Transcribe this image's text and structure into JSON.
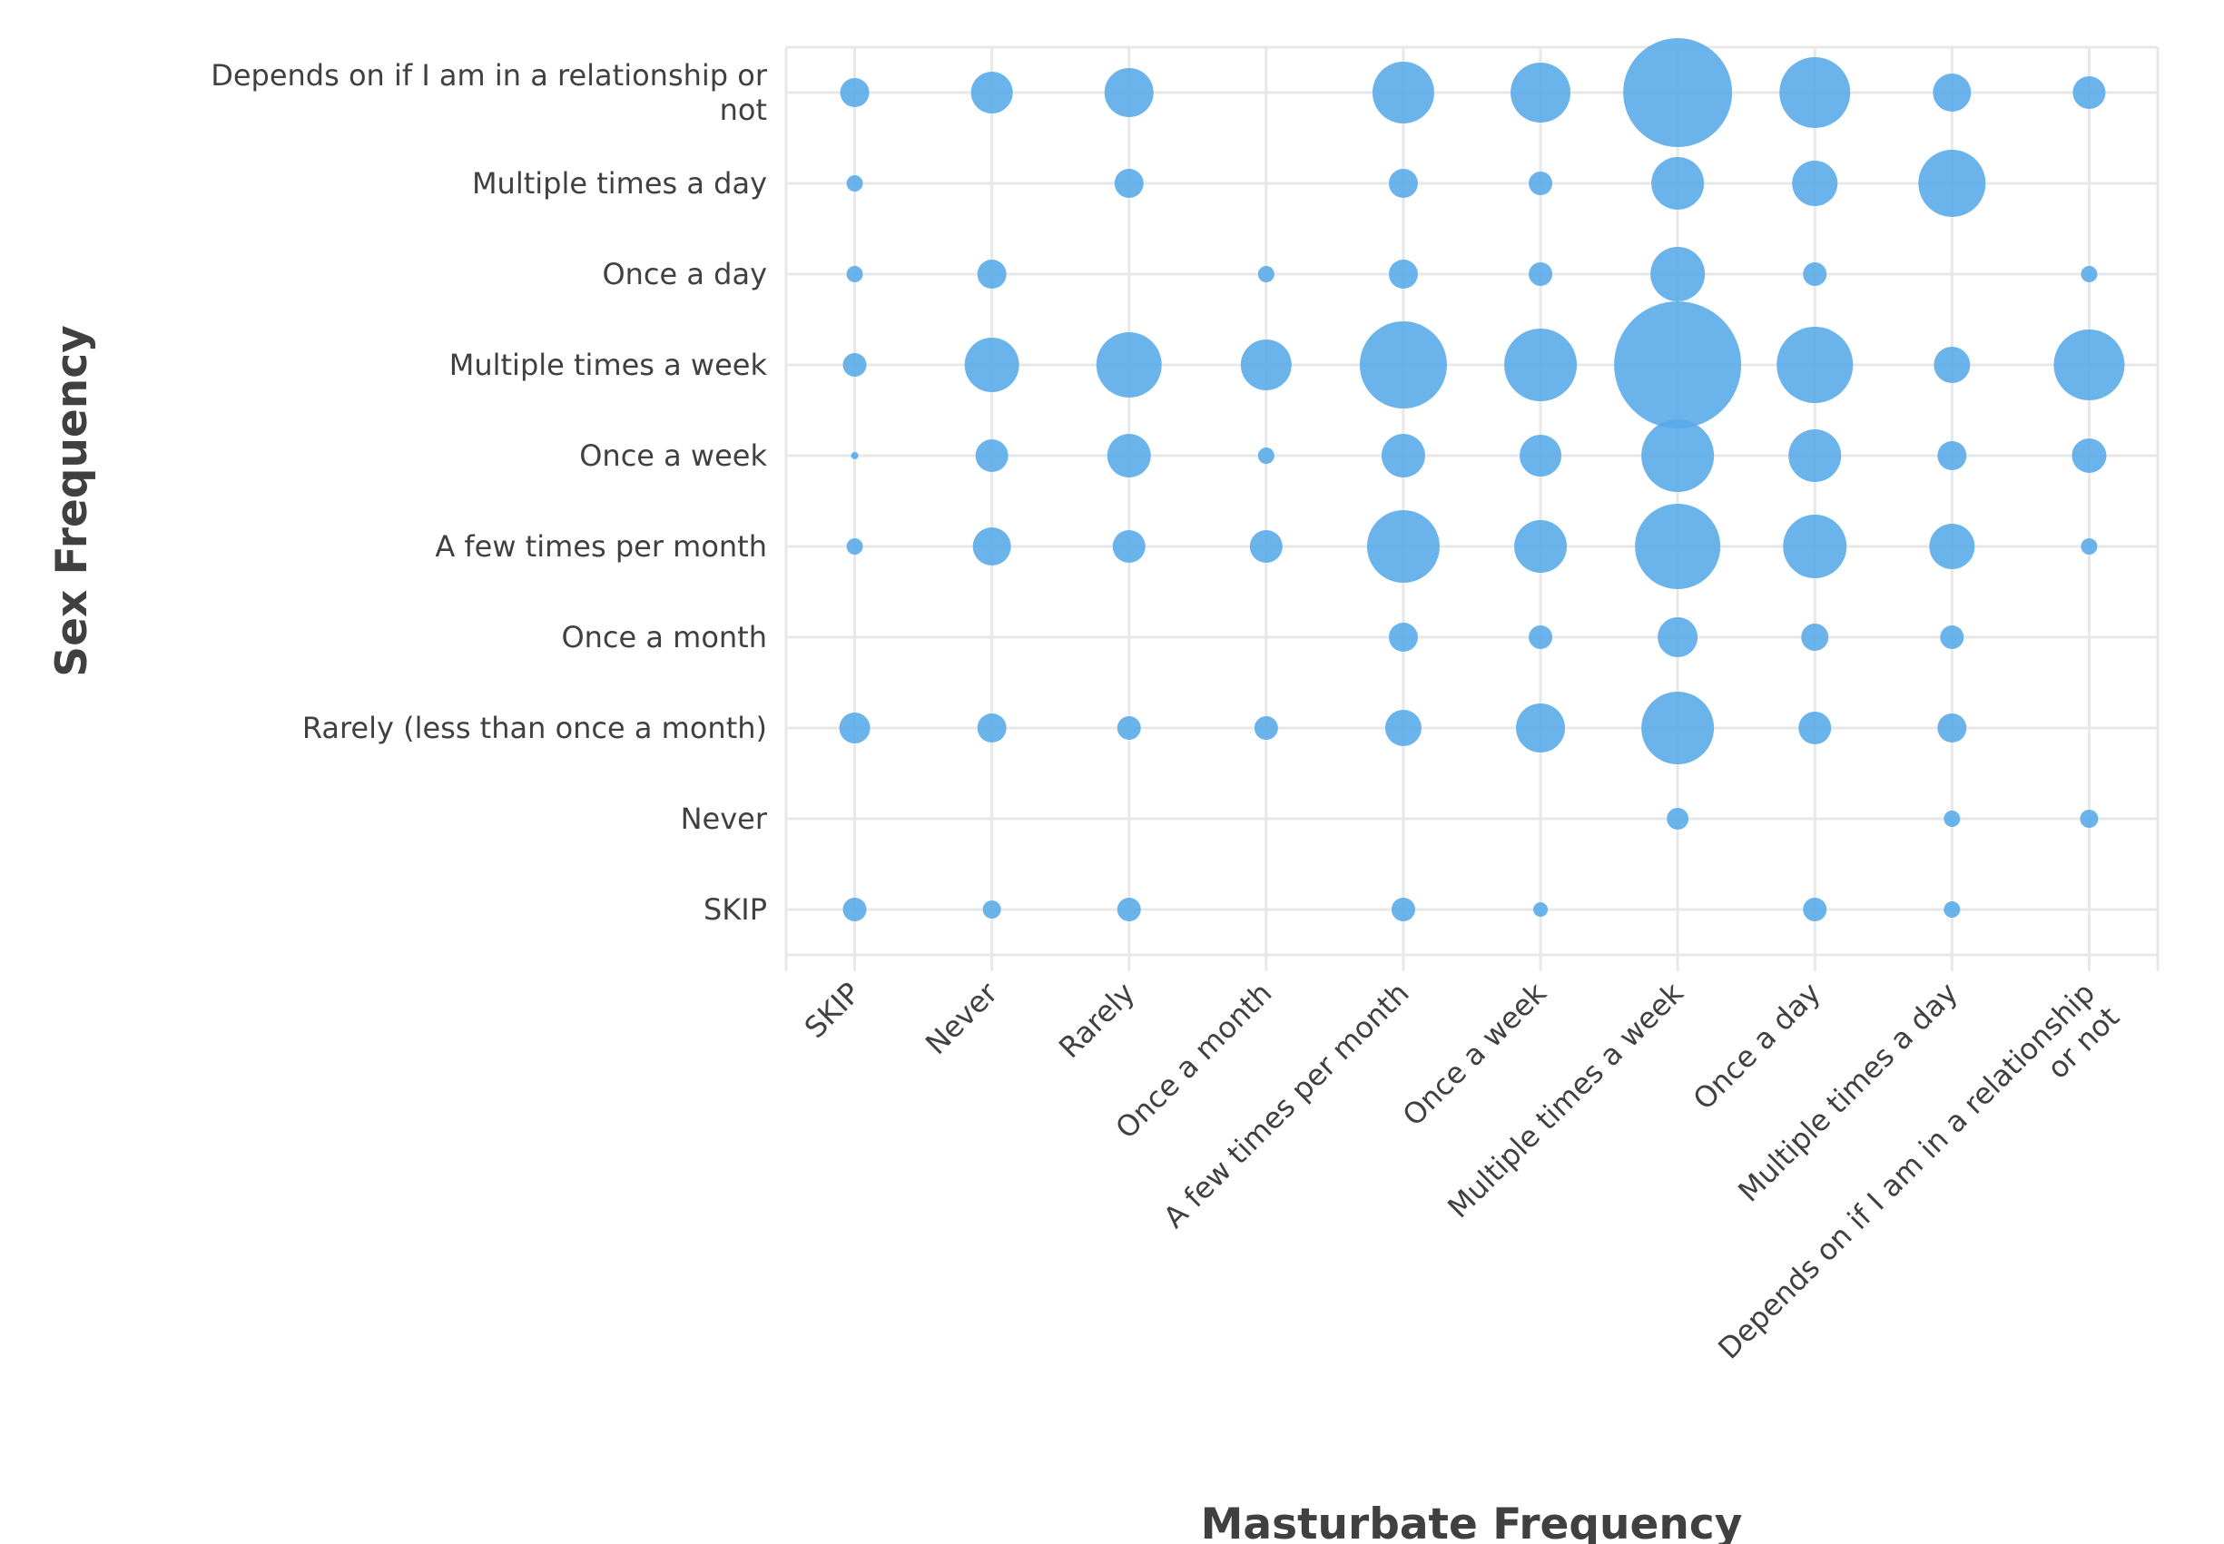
{
  "chart_data": {
    "type": "scatter",
    "variant": "bubble-grid",
    "title": "",
    "xlabel": "Masturbate Frequency",
    "ylabel": "Sex Frequency",
    "x_categories": [
      "SKIP",
      "Never",
      "Rarely",
      "Once a month",
      "A few times per month",
      "Once a week",
      "Multiple times a week",
      "Once a day",
      "Multiple times a day",
      "Depends on if I am in a relationship\nor not"
    ],
    "y_categories": [
      "Depends on if I am in a relationship or\nnot",
      "Multiple times a day",
      "Once a day",
      "Multiple times a week",
      "Once a week",
      "A few times per month",
      "Once a month",
      "Rarely (less than once a month)",
      "Never",
      "SKIP"
    ],
    "bubble_radius_px": [
      [
        16,
        23,
        27,
        0,
        34,
        33,
        60,
        39,
        21,
        18
      ],
      [
        9,
        0,
        16,
        0,
        16,
        13,
        29,
        25,
        37,
        0
      ],
      [
        9,
        16,
        0,
        9,
        16,
        13,
        30,
        13,
        0,
        9
      ],
      [
        13,
        30,
        36,
        28,
        48,
        40,
        70,
        42,
        20,
        39
      ],
      [
        4,
        18,
        24,
        9,
        24,
        23,
        40,
        29,
        16,
        19
      ],
      [
        9,
        21,
        18,
        18,
        40,
        29,
        47,
        35,
        25,
        9
      ],
      [
        0,
        0,
        0,
        0,
        16,
        13,
        22,
        15,
        13,
        0
      ],
      [
        17,
        16,
        13,
        13,
        20,
        27,
        40,
        18,
        16,
        0
      ],
      [
        0,
        0,
        0,
        0,
        0,
        0,
        12,
        0,
        9,
        10
      ],
      [
        13,
        10,
        13,
        0,
        13,
        8,
        0,
        13,
        9,
        0
      ]
    ],
    "grid": true,
    "legend": false
  },
  "style": {
    "bubble_color": "#57a9e8",
    "bubble_opacity": 0.88,
    "grid_color": "#e8e8e8",
    "text_color": "#404040",
    "background": "#ffffff"
  }
}
